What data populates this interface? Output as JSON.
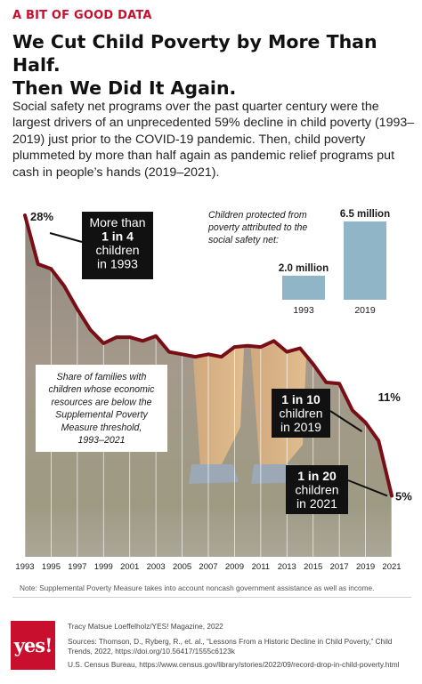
{
  "header": {
    "kicker": "A BIT OF GOOD DATA",
    "title_line1": "We Cut Child Poverty by More Than Half.",
    "title_line2": "Then We Did It Again."
  },
  "intro": "Social safety net programs over the past quarter century were the largest drivers of an unprecedented 59% decline in child poverty (1993–2019) just prior to the COVID-19 pandemic. Then, child poverty plummeted by more than half again as pandemic relief programs put cash in people’s hands (2019–2021).",
  "chart_data": [
    {
      "type": "line",
      "description_label": [
        "Share of families with",
        "children whose economic",
        "resources are below the",
        "Supplemental Poverty",
        "Measure threshold,",
        "1993–2021"
      ],
      "x": [
        1993,
        1994,
        1995,
        1996,
        1997,
        1998,
        1999,
        2000,
        2001,
        2002,
        2003,
        2004,
        2005,
        2006,
        2007,
        2008,
        2009,
        2010,
        2011,
        2012,
        2013,
        2014,
        2015,
        2016,
        2017,
        2018,
        2019,
        2020,
        2021
      ],
      "values": [
        28,
        24,
        23.6,
        22.2,
        20.3,
        18.6,
        17.5,
        18,
        18,
        17.7,
        18.1,
        16.8,
        16.6,
        16.4,
        16.6,
        16.4,
        17.2,
        17.3,
        17.2,
        17.7,
        16.8,
        17.1,
        15.8,
        14.3,
        14.2,
        12,
        11,
        9.5,
        5
      ],
      "xticks": [
        "1993",
        "1995",
        "1997",
        "1999",
        "2001",
        "2003",
        "2005",
        "2007",
        "2009",
        "2011",
        "2013",
        "2015",
        "2017",
        "2019",
        "2021"
      ],
      "xlim": [
        1993,
        2021
      ],
      "ylim": [
        0,
        28
      ],
      "point_labels": {
        "start": "28%",
        "2019": "11%",
        "end": "5%"
      },
      "callouts": [
        {
          "year": 1993,
          "lines": [
            "More than",
            "1 in 4",
            "children",
            "in 1993"
          ]
        },
        {
          "year": 2019,
          "lines": [
            "1 in 10",
            "children",
            "in 2019"
          ]
        },
        {
          "year": 2021,
          "lines": [
            "1 in 20",
            "children",
            "in 2021"
          ]
        }
      ],
      "colors": {
        "line": "#7a0e17",
        "callout": "#111111"
      }
    },
    {
      "type": "bar",
      "title": [
        "Children protected from",
        "poverty attributed to the",
        "social safety net:"
      ],
      "categories": [
        "1993",
        "2019"
      ],
      "values": [
        2.0,
        6.5
      ],
      "value_labels": [
        "2.0 million",
        "6.5 million"
      ],
      "ylim": [
        0,
        6.5
      ],
      "colors": {
        "bar": "#8fb5c6"
      }
    }
  ],
  "note": "Note: Supplemental Poverty Measure takes into account noncash government assistance as well as income.",
  "footer": {
    "logo_text": "yes!",
    "credit": "Tracy Matsue Loeffelholz/YES! Magazine, 2022",
    "sources": "Sources: Thomson, D., Ryberg, R., et. al., “Lessons From a Historic Decline in Child Poverty,” Child Trends, 2022, https://doi.org/10.56417/1555c6123k",
    "census_url": "U.S. Census Bureau, https://www.census.gov/library/stories/2022/09/record-drop-in-child-poverty.html"
  }
}
